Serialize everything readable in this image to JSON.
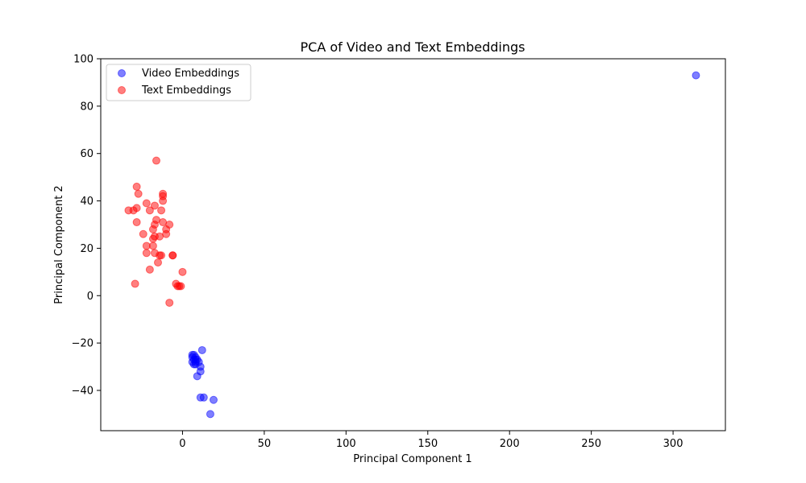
{
  "chart_data": {
    "type": "scatter",
    "title": "PCA of Video and Text Embeddings",
    "xlabel": "Principal Component 1",
    "ylabel": "Principal Component 2",
    "xlim": [
      -50,
      332
    ],
    "ylim": [
      -57,
      100
    ],
    "xticks": [
      0,
      50,
      100,
      150,
      200,
      250,
      300
    ],
    "yticks": [
      -40,
      -20,
      0,
      20,
      40,
      60,
      80,
      100
    ],
    "xtick_labels": [
      "0",
      "50",
      "100",
      "150",
      "200",
      "250",
      "300"
    ],
    "ytick_labels": [
      "−40",
      "−20",
      "0",
      "20",
      "40",
      "60",
      "80",
      "100"
    ],
    "grid": false,
    "legend_position": "top-left",
    "series": [
      {
        "name": "Video Embeddings",
        "color": "#0000ff",
        "points": [
          [
            314,
            93
          ],
          [
            12,
            -23
          ],
          [
            6,
            -25
          ],
          [
            7,
            -25
          ],
          [
            8,
            -26
          ],
          [
            6,
            -26
          ],
          [
            7,
            -27
          ],
          [
            8,
            -27
          ],
          [
            9,
            -27
          ],
          [
            6,
            -28
          ],
          [
            8,
            -28
          ],
          [
            10,
            -28
          ],
          [
            7,
            -29
          ],
          [
            8,
            -29
          ],
          [
            11,
            -30
          ],
          [
            11,
            -32
          ],
          [
            9,
            -34
          ],
          [
            19,
            -44
          ],
          [
            11,
            -43
          ],
          [
            13,
            -43
          ],
          [
            17,
            -50
          ]
        ]
      },
      {
        "name": "Text Embeddings",
        "color": "#ff0000",
        "points": [
          [
            -16,
            57
          ],
          [
            -28,
            46
          ],
          [
            -27,
            43
          ],
          [
            -12,
            43
          ],
          [
            -12,
            42
          ],
          [
            -12,
            40
          ],
          [
            -22,
            39
          ],
          [
            -17,
            38
          ],
          [
            -28,
            37
          ],
          [
            -33,
            36
          ],
          [
            -30,
            36
          ],
          [
            -20,
            36
          ],
          [
            -13,
            36
          ],
          [
            -16,
            32
          ],
          [
            -28,
            31
          ],
          [
            -12,
            31
          ],
          [
            -17,
            30
          ],
          [
            -8,
            30
          ],
          [
            -10,
            28
          ],
          [
            -18,
            28
          ],
          [
            -24,
            26
          ],
          [
            -17,
            25
          ],
          [
            -14,
            25
          ],
          [
            -10,
            26
          ],
          [
            -18,
            24
          ],
          [
            -18,
            21
          ],
          [
            -22,
            21
          ],
          [
            -22,
            18
          ],
          [
            -17,
            18
          ],
          [
            -14,
            17
          ],
          [
            -13,
            17
          ],
          [
            -6,
            17
          ],
          [
            -6,
            17
          ],
          [
            -15,
            14
          ],
          [
            -20,
            11
          ],
          [
            0,
            10
          ],
          [
            -4,
            5
          ],
          [
            -29,
            5
          ],
          [
            -3,
            4
          ],
          [
            -1,
            4
          ],
          [
            -2,
            4
          ],
          [
            -8,
            -3
          ]
        ]
      }
    ]
  }
}
